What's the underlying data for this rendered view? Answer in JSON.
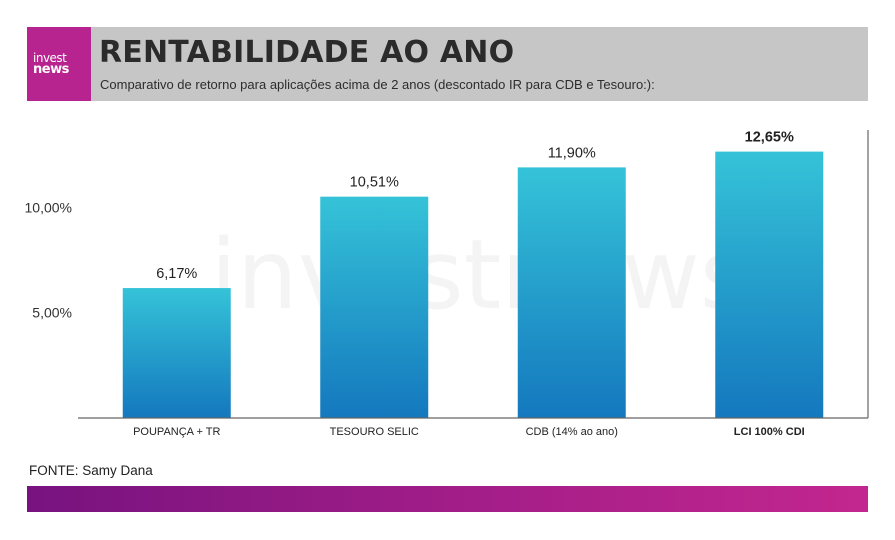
{
  "brand": {
    "logo_line1": "invest",
    "logo_line2": "news",
    "accent_color": "#b8248f"
  },
  "header": {
    "title": "RENTABILIDADE AO ANO",
    "subtitle": "Comparativo de retorno para aplicações acima de 2 anos (descontado IR para CDB e Tesouro:):"
  },
  "watermark": "investnews",
  "source": "FONTE: Samy Dana",
  "chart_data": {
    "type": "bar",
    "title": "RENTABILIDADE AO ANO",
    "categories": [
      "POUPANÇA + TR",
      "TESOURO SELIC",
      "CDB (14% ao ano)",
      "LCI 100% CDI"
    ],
    "values": [
      6.17,
      10.51,
      11.9,
      12.65
    ],
    "value_labels": [
      "6,17%",
      "10,51%",
      "11,90%",
      "12,65%"
    ],
    "highlight_index": 3,
    "yticks": [
      5,
      10
    ],
    "ytick_labels": [
      "5,00%",
      "10,00%"
    ],
    "ylim": [
      0,
      13.5
    ],
    "grid": false,
    "bar_gradient": [
      "#35c3d8",
      "#1478be"
    ]
  }
}
